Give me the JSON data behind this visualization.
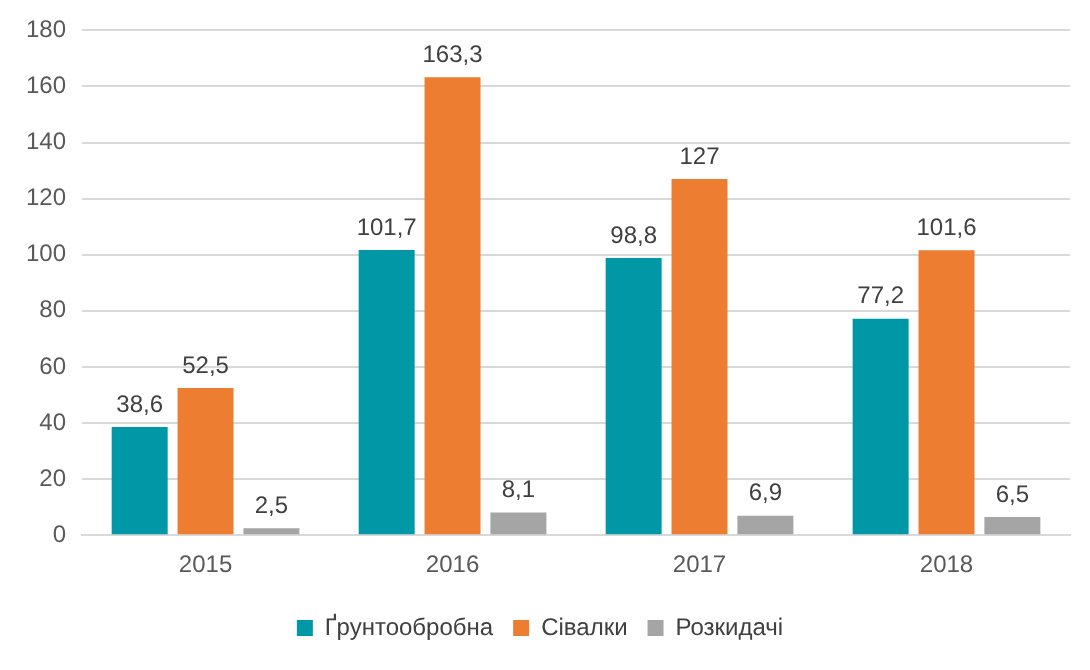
{
  "chart_data": {
    "type": "bar",
    "categories": [
      "2015",
      "2016",
      "2017",
      "2018"
    ],
    "series": [
      {
        "name": "Ґрунтообробна",
        "color": "#0097a7",
        "values": [
          38.6,
          101.7,
          98.8,
          77.2
        ],
        "value_labels": [
          "38,6",
          "101,7",
          "98,8",
          "77,2"
        ]
      },
      {
        "name": "Сівалки",
        "color": "#ed7d31",
        "values": [
          52.5,
          163.3,
          127,
          101.6
        ],
        "value_labels": [
          "52,5",
          "163,3",
          "127",
          "101,6"
        ]
      },
      {
        "name": "Розкидачі",
        "color": "#a5a5a5",
        "values": [
          2.5,
          8.1,
          6.9,
          6.5
        ],
        "value_labels": [
          "2,5",
          "8,1",
          "6,9",
          "6,5"
        ]
      }
    ],
    "ylim": [
      0,
      180
    ],
    "yticks": [
      0,
      20,
      40,
      60,
      80,
      100,
      120,
      140,
      160,
      180
    ],
    "grid": "y",
    "legend": "bottom"
  }
}
